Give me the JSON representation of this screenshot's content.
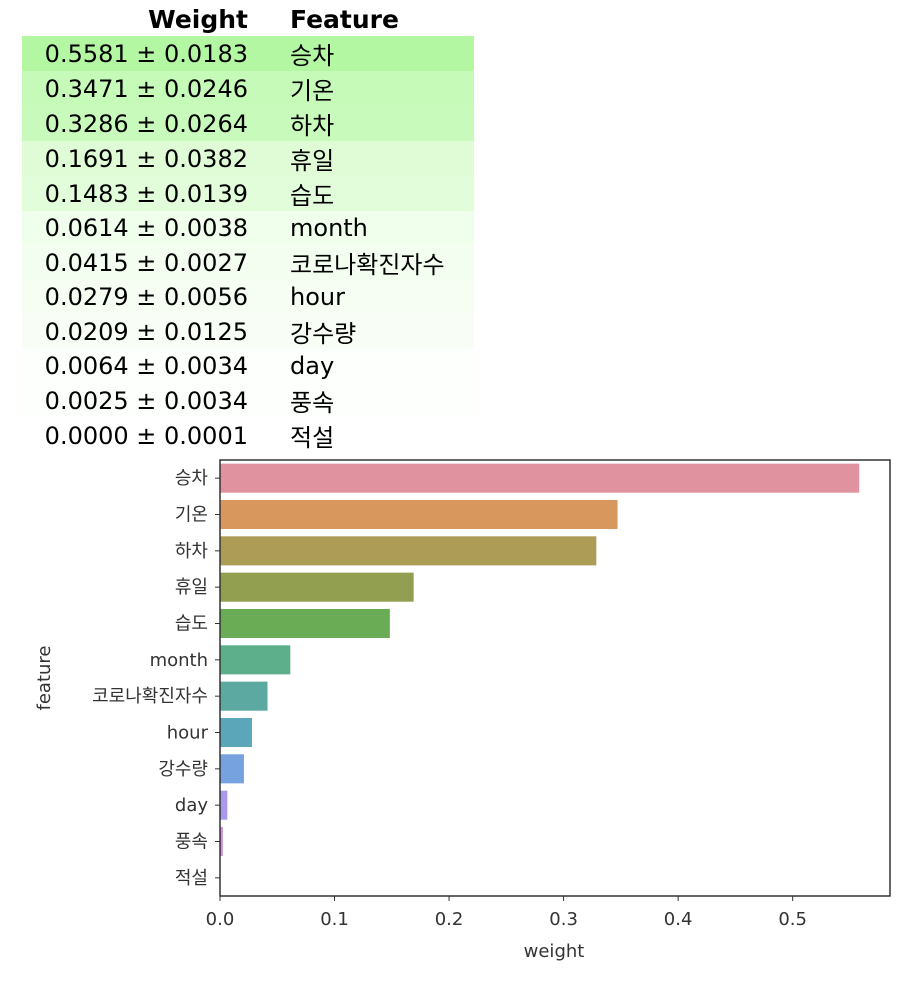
{
  "table": {
    "headers": [
      "Weight",
      "Feature"
    ],
    "rows": [
      {
        "weight": "0.5581 ± 0.0183",
        "feature": "승차",
        "bg": "#b3f7a3"
      },
      {
        "weight": "0.3471 ± 0.0246",
        "feature": "기온",
        "bg": "#c6fab8"
      },
      {
        "weight": "0.3286 ± 0.0264",
        "feature": "하차",
        "bg": "#c8fabb"
      },
      {
        "weight": "0.1691 ± 0.0382",
        "feature": "휴일",
        "bg": "#dffcd6"
      },
      {
        "weight": "0.1483 ± 0.0139",
        "feature": "습도",
        "bg": "#e2fdda"
      },
      {
        "weight": "0.0614 ± 0.0038",
        "feature": "month",
        "bg": "#f0feec"
      },
      {
        "weight": "0.0415 ± 0.0027",
        "feature": "코로나확진자수",
        "bg": "#f3fef0"
      },
      {
        "weight": "0.0279 ± 0.0056",
        "feature": "hour",
        "bg": "#f6fef4"
      },
      {
        "weight": "0.0209 ± 0.0125",
        "feature": "강수량",
        "bg": "#f8fef6"
      },
      {
        "weight": "0.0064 ± 0.0034",
        "feature": "day",
        "bg": "#fcfffb"
      },
      {
        "weight": "0.0025 ± 0.0034",
        "feature": "풍속",
        "bg": "#fdfffd"
      },
      {
        "weight": "0.0000 ± 0.0001",
        "feature": "적설",
        "bg": "#ffffff"
      }
    ]
  },
  "chart_data": {
    "type": "bar",
    "orientation": "horizontal",
    "categories": [
      "승차",
      "기온",
      "하차",
      "휴일",
      "습도",
      "month",
      "코로나확진자수",
      "hour",
      "강수량",
      "day",
      "풍속",
      "적설"
    ],
    "values": [
      0.5581,
      0.3471,
      0.3286,
      0.1691,
      0.1483,
      0.0614,
      0.0415,
      0.0279,
      0.0209,
      0.0064,
      0.0025,
      0.0
    ],
    "colors": [
      "#e0939e",
      "#d8975c",
      "#ad9c55",
      "#929f51",
      "#6aab56",
      "#5dae8b",
      "#5ba9a1",
      "#5ba6b9",
      "#76a3e0",
      "#aa98eb",
      "#d38ddd",
      "#e293c4"
    ],
    "xlabel": "weight",
    "ylabel": "feature",
    "xlim": [
      0.0,
      0.585
    ],
    "xticks": [
      "0.0",
      "0.1",
      "0.2",
      "0.3",
      "0.4",
      "0.5"
    ],
    "grid": false
  }
}
